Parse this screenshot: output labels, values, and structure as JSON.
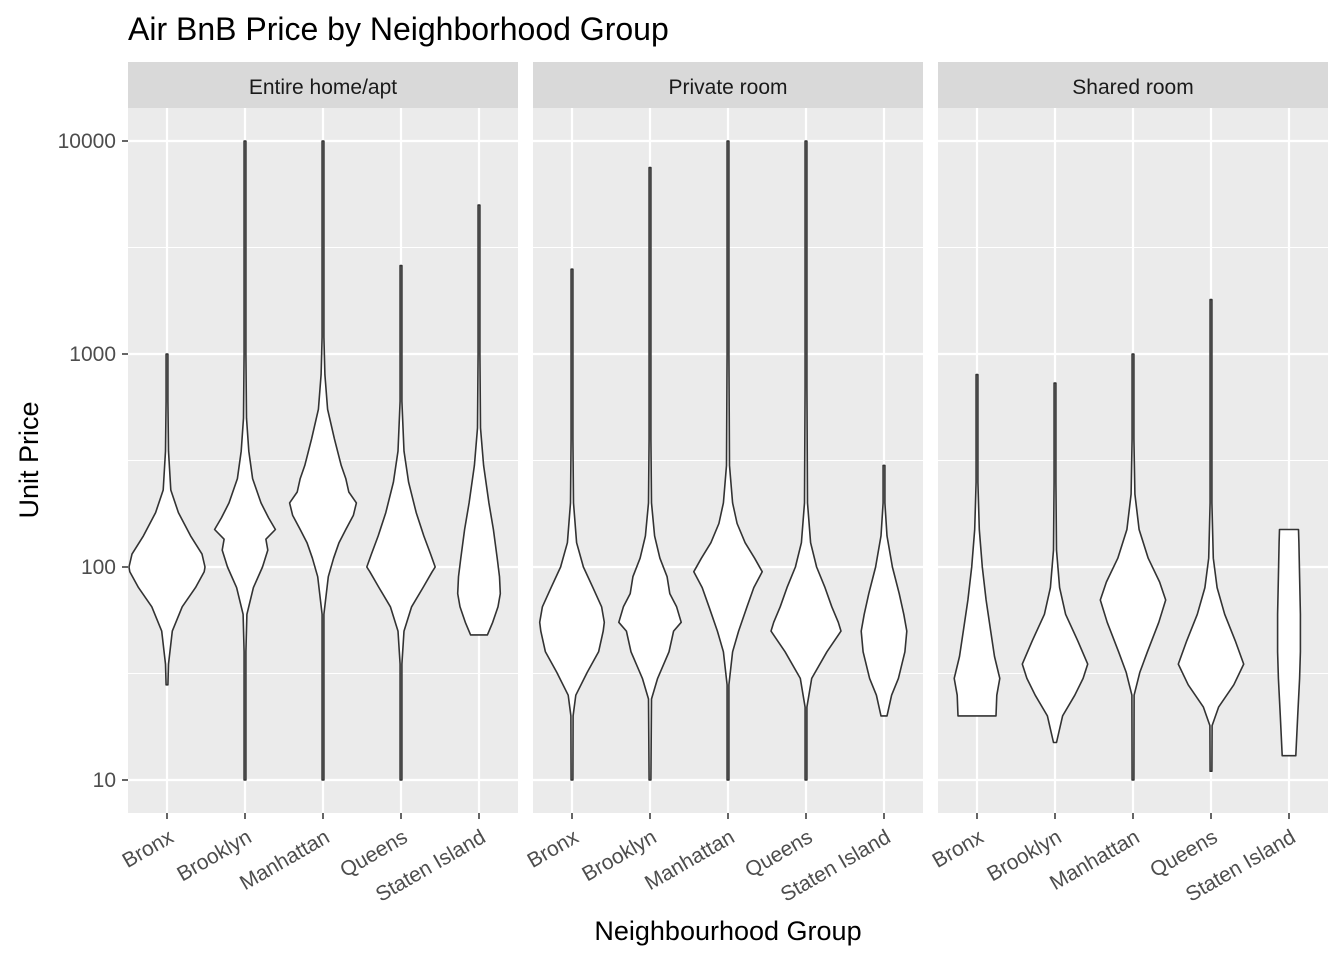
{
  "chart_data": {
    "type": "violin",
    "title": "Air BnB Price by Neighborhood Group",
    "xlabel": "Neighbourhood Group",
    "ylabel": "Unit Price",
    "y_scale": "log10",
    "ylim": [
      7,
      12000
    ],
    "y_ticks": [
      10,
      100,
      1000,
      10000
    ],
    "y_tick_labels": [
      "10",
      "100",
      "1000",
      "10000"
    ],
    "categories": [
      "Bronx",
      "Brooklyn",
      "Manhattan",
      "Queens",
      "Staten Island"
    ],
    "colors": {
      "panel_bg": "#ebebeb",
      "strip_bg": "#d9d9d9",
      "grid": "#ffffff",
      "violin_fill": "#ffffff",
      "violin_stroke": "#333333"
    },
    "panels": [
      {
        "name": "Entire home/apt",
        "groups": [
          {
            "category": "Bronx",
            "min": 28,
            "max": 1000,
            "mode": 100,
            "shape": [
              [
                28,
                0.01
              ],
              [
                35,
                0.04
              ],
              [
                50,
                0.14
              ],
              [
                65,
                0.4
              ],
              [
                80,
                0.75
              ],
              [
                95,
                0.98
              ],
              [
                100,
                1.0
              ],
              [
                115,
                0.92
              ],
              [
                140,
                0.62
              ],
              [
                180,
                0.3
              ],
              [
                230,
                0.1
              ],
              [
                350,
                0.04
              ],
              [
                600,
                0.02
              ],
              [
                1000,
                0.005
              ]
            ]
          },
          {
            "category": "Brooklyn",
            "min": 10,
            "max": 10000,
            "mode": 150,
            "shape": [
              [
                10,
                0.005
              ],
              [
                40,
                0.01
              ],
              [
                60,
                0.05
              ],
              [
                80,
                0.22
              ],
              [
                100,
                0.46
              ],
              [
                120,
                0.6
              ],
              [
                135,
                0.55
              ],
              [
                150,
                0.8
              ],
              [
                170,
                0.62
              ],
              [
                200,
                0.42
              ],
              [
                260,
                0.2
              ],
              [
                350,
                0.1
              ],
              [
                500,
                0.04
              ],
              [
                1000,
                0.015
              ],
              [
                10000,
                0.005
              ]
            ]
          },
          {
            "category": "Manhattan",
            "min": 10,
            "max": 10000,
            "mode": 200,
            "shape": [
              [
                10,
                0.005
              ],
              [
                60,
                0.01
              ],
              [
                90,
                0.14
              ],
              [
                110,
                0.28
              ],
              [
                130,
                0.42
              ],
              [
                150,
                0.6
              ],
              [
                175,
                0.8
              ],
              [
                200,
                0.88
              ],
              [
                225,
                0.68
              ],
              [
                260,
                0.6
              ],
              [
                300,
                0.48
              ],
              [
                400,
                0.3
              ],
              [
                550,
                0.12
              ],
              [
                800,
                0.05
              ],
              [
                1200,
                0.02
              ],
              [
                10000,
                0.005
              ]
            ]
          },
          {
            "category": "Queens",
            "min": 10,
            "max": 2600,
            "mode": 100,
            "shape": [
              [
                10,
                0.005
              ],
              [
                35,
                0.01
              ],
              [
                50,
                0.08
              ],
              [
                65,
                0.28
              ],
              [
                80,
                0.58
              ],
              [
                95,
                0.82
              ],
              [
                100,
                0.9
              ],
              [
                115,
                0.78
              ],
              [
                140,
                0.6
              ],
              [
                180,
                0.4
              ],
              [
                250,
                0.2
              ],
              [
                350,
                0.08
              ],
              [
                600,
                0.02
              ],
              [
                2600,
                0.005
              ]
            ]
          },
          {
            "category": "Staten Island",
            "min": 48,
            "max": 5000,
            "mode": 75,
            "shape": [
              [
                48,
                0.22
              ],
              [
                55,
                0.36
              ],
              [
                65,
                0.5
              ],
              [
                75,
                0.56
              ],
              [
                90,
                0.54
              ],
              [
                110,
                0.48
              ],
              [
                150,
                0.38
              ],
              [
                200,
                0.26
              ],
              [
                300,
                0.12
              ],
              [
                450,
                0.04
              ],
              [
                1000,
                0.015
              ],
              [
                5000,
                0.005
              ]
            ]
          }
        ]
      },
      {
        "name": "Private room",
        "groups": [
          {
            "category": "Bronx",
            "min": 10,
            "max": 2500,
            "mode": 55,
            "shape": [
              [
                10,
                0.005
              ],
              [
                20,
                0.03
              ],
              [
                25,
                0.1
              ],
              [
                32,
                0.4
              ],
              [
                40,
                0.7
              ],
              [
                50,
                0.82
              ],
              [
                55,
                0.85
              ],
              [
                65,
                0.78
              ],
              [
                80,
                0.55
              ],
              [
                100,
                0.3
              ],
              [
                130,
                0.12
              ],
              [
                200,
                0.04
              ],
              [
                400,
                0.015
              ],
              [
                2500,
                0.005
              ]
            ]
          },
          {
            "category": "Brooklyn",
            "min": 10,
            "max": 7500,
            "mode": 55,
            "shape": [
              [
                10,
                0.005
              ],
              [
                24,
                0.04
              ],
              [
                30,
                0.2
              ],
              [
                40,
                0.5
              ],
              [
                50,
                0.62
              ],
              [
                55,
                0.82
              ],
              [
                65,
                0.7
              ],
              [
                75,
                0.52
              ],
              [
                90,
                0.45
              ],
              [
                110,
                0.26
              ],
              [
                140,
                0.12
              ],
              [
                200,
                0.04
              ],
              [
                400,
                0.015
              ],
              [
                7500,
                0.005
              ]
            ]
          },
          {
            "category": "Manhattan",
            "min": 10,
            "max": 10000,
            "mode": 90,
            "shape": [
              [
                10,
                0.005
              ],
              [
                28,
                0.02
              ],
              [
                40,
                0.12
              ],
              [
                50,
                0.28
              ],
              [
                65,
                0.5
              ],
              [
                80,
                0.68
              ],
              [
                95,
                0.9
              ],
              [
                110,
                0.7
              ],
              [
                130,
                0.45
              ],
              [
                160,
                0.24
              ],
              [
                200,
                0.12
              ],
              [
                300,
                0.04
              ],
              [
                1000,
                0.01
              ],
              [
                10000,
                0.005
              ]
            ]
          },
          {
            "category": "Queens",
            "min": 10,
            "max": 10000,
            "mode": 50,
            "shape": [
              [
                10,
                0.005
              ],
              [
                22,
                0.02
              ],
              [
                30,
                0.15
              ],
              [
                40,
                0.55
              ],
              [
                50,
                0.92
              ],
              [
                55,
                0.85
              ],
              [
                65,
                0.68
              ],
              [
                80,
                0.5
              ],
              [
                100,
                0.28
              ],
              [
                130,
                0.12
              ],
              [
                200,
                0.04
              ],
              [
                700,
                0.01
              ],
              [
                10000,
                0.005
              ]
            ]
          },
          {
            "category": "Staten Island",
            "min": 20,
            "max": 300,
            "mode": 50,
            "shape": [
              [
                20,
                0.08
              ],
              [
                25,
                0.2
              ],
              [
                30,
                0.38
              ],
              [
                40,
                0.55
              ],
              [
                50,
                0.6
              ],
              [
                60,
                0.52
              ],
              [
                75,
                0.4
              ],
              [
                100,
                0.22
              ],
              [
                140,
                0.08
              ],
              [
                200,
                0.02
              ],
              [
                300,
                0.005
              ]
            ]
          }
        ]
      },
      {
        "name": "Shared room",
        "groups": [
          {
            "category": "Bronx",
            "min": 20,
            "max": 800,
            "mode": 30,
            "shape": [
              [
                20,
                0.5
              ],
              [
                25,
                0.52
              ],
              [
                30,
                0.6
              ],
              [
                38,
                0.46
              ],
              [
                50,
                0.36
              ],
              [
                70,
                0.24
              ],
              [
                100,
                0.14
              ],
              [
                150,
                0.06
              ],
              [
                250,
                0.02
              ],
              [
                800,
                0.005
              ]
            ]
          },
          {
            "category": "Brooklyn",
            "min": 15,
            "max": 730,
            "mode": 35,
            "shape": [
              [
                15,
                0.04
              ],
              [
                20,
                0.2
              ],
              [
                25,
                0.52
              ],
              [
                30,
                0.74
              ],
              [
                35,
                0.86
              ],
              [
                45,
                0.6
              ],
              [
                60,
                0.28
              ],
              [
                80,
                0.12
              ],
              [
                120,
                0.04
              ],
              [
                250,
                0.015
              ],
              [
                730,
                0.005
              ]
            ]
          },
          {
            "category": "Manhattan",
            "min": 10,
            "max": 1000,
            "mode": 70,
            "shape": [
              [
                10,
                0.005
              ],
              [
                25,
                0.03
              ],
              [
                32,
                0.18
              ],
              [
                40,
                0.38
              ],
              [
                55,
                0.68
              ],
              [
                70,
                0.86
              ],
              [
                85,
                0.7
              ],
              [
                110,
                0.4
              ],
              [
                150,
                0.16
              ],
              [
                220,
                0.05
              ],
              [
                400,
                0.015
              ],
              [
                1000,
                0.005
              ]
            ]
          },
          {
            "category": "Queens",
            "min": 11,
            "max": 1800,
            "mode": 35,
            "shape": [
              [
                11,
                0.005
              ],
              [
                18,
                0.03
              ],
              [
                22,
                0.2
              ],
              [
                28,
                0.6
              ],
              [
                35,
                0.86
              ],
              [
                45,
                0.64
              ],
              [
                60,
                0.36
              ],
              [
                80,
                0.16
              ],
              [
                110,
                0.06
              ],
              [
                200,
                0.015
              ],
              [
                1800,
                0.005
              ]
            ]
          },
          {
            "category": "Staten Island",
            "min": 13,
            "max": 150,
            "mode": 40,
            "shape": [
              [
                13,
                0.18
              ],
              [
                20,
                0.23
              ],
              [
                30,
                0.28
              ],
              [
                40,
                0.3
              ],
              [
                60,
                0.3
              ],
              [
                90,
                0.28
              ],
              [
                130,
                0.26
              ],
              [
                150,
                0.25
              ]
            ]
          }
        ]
      }
    ]
  }
}
